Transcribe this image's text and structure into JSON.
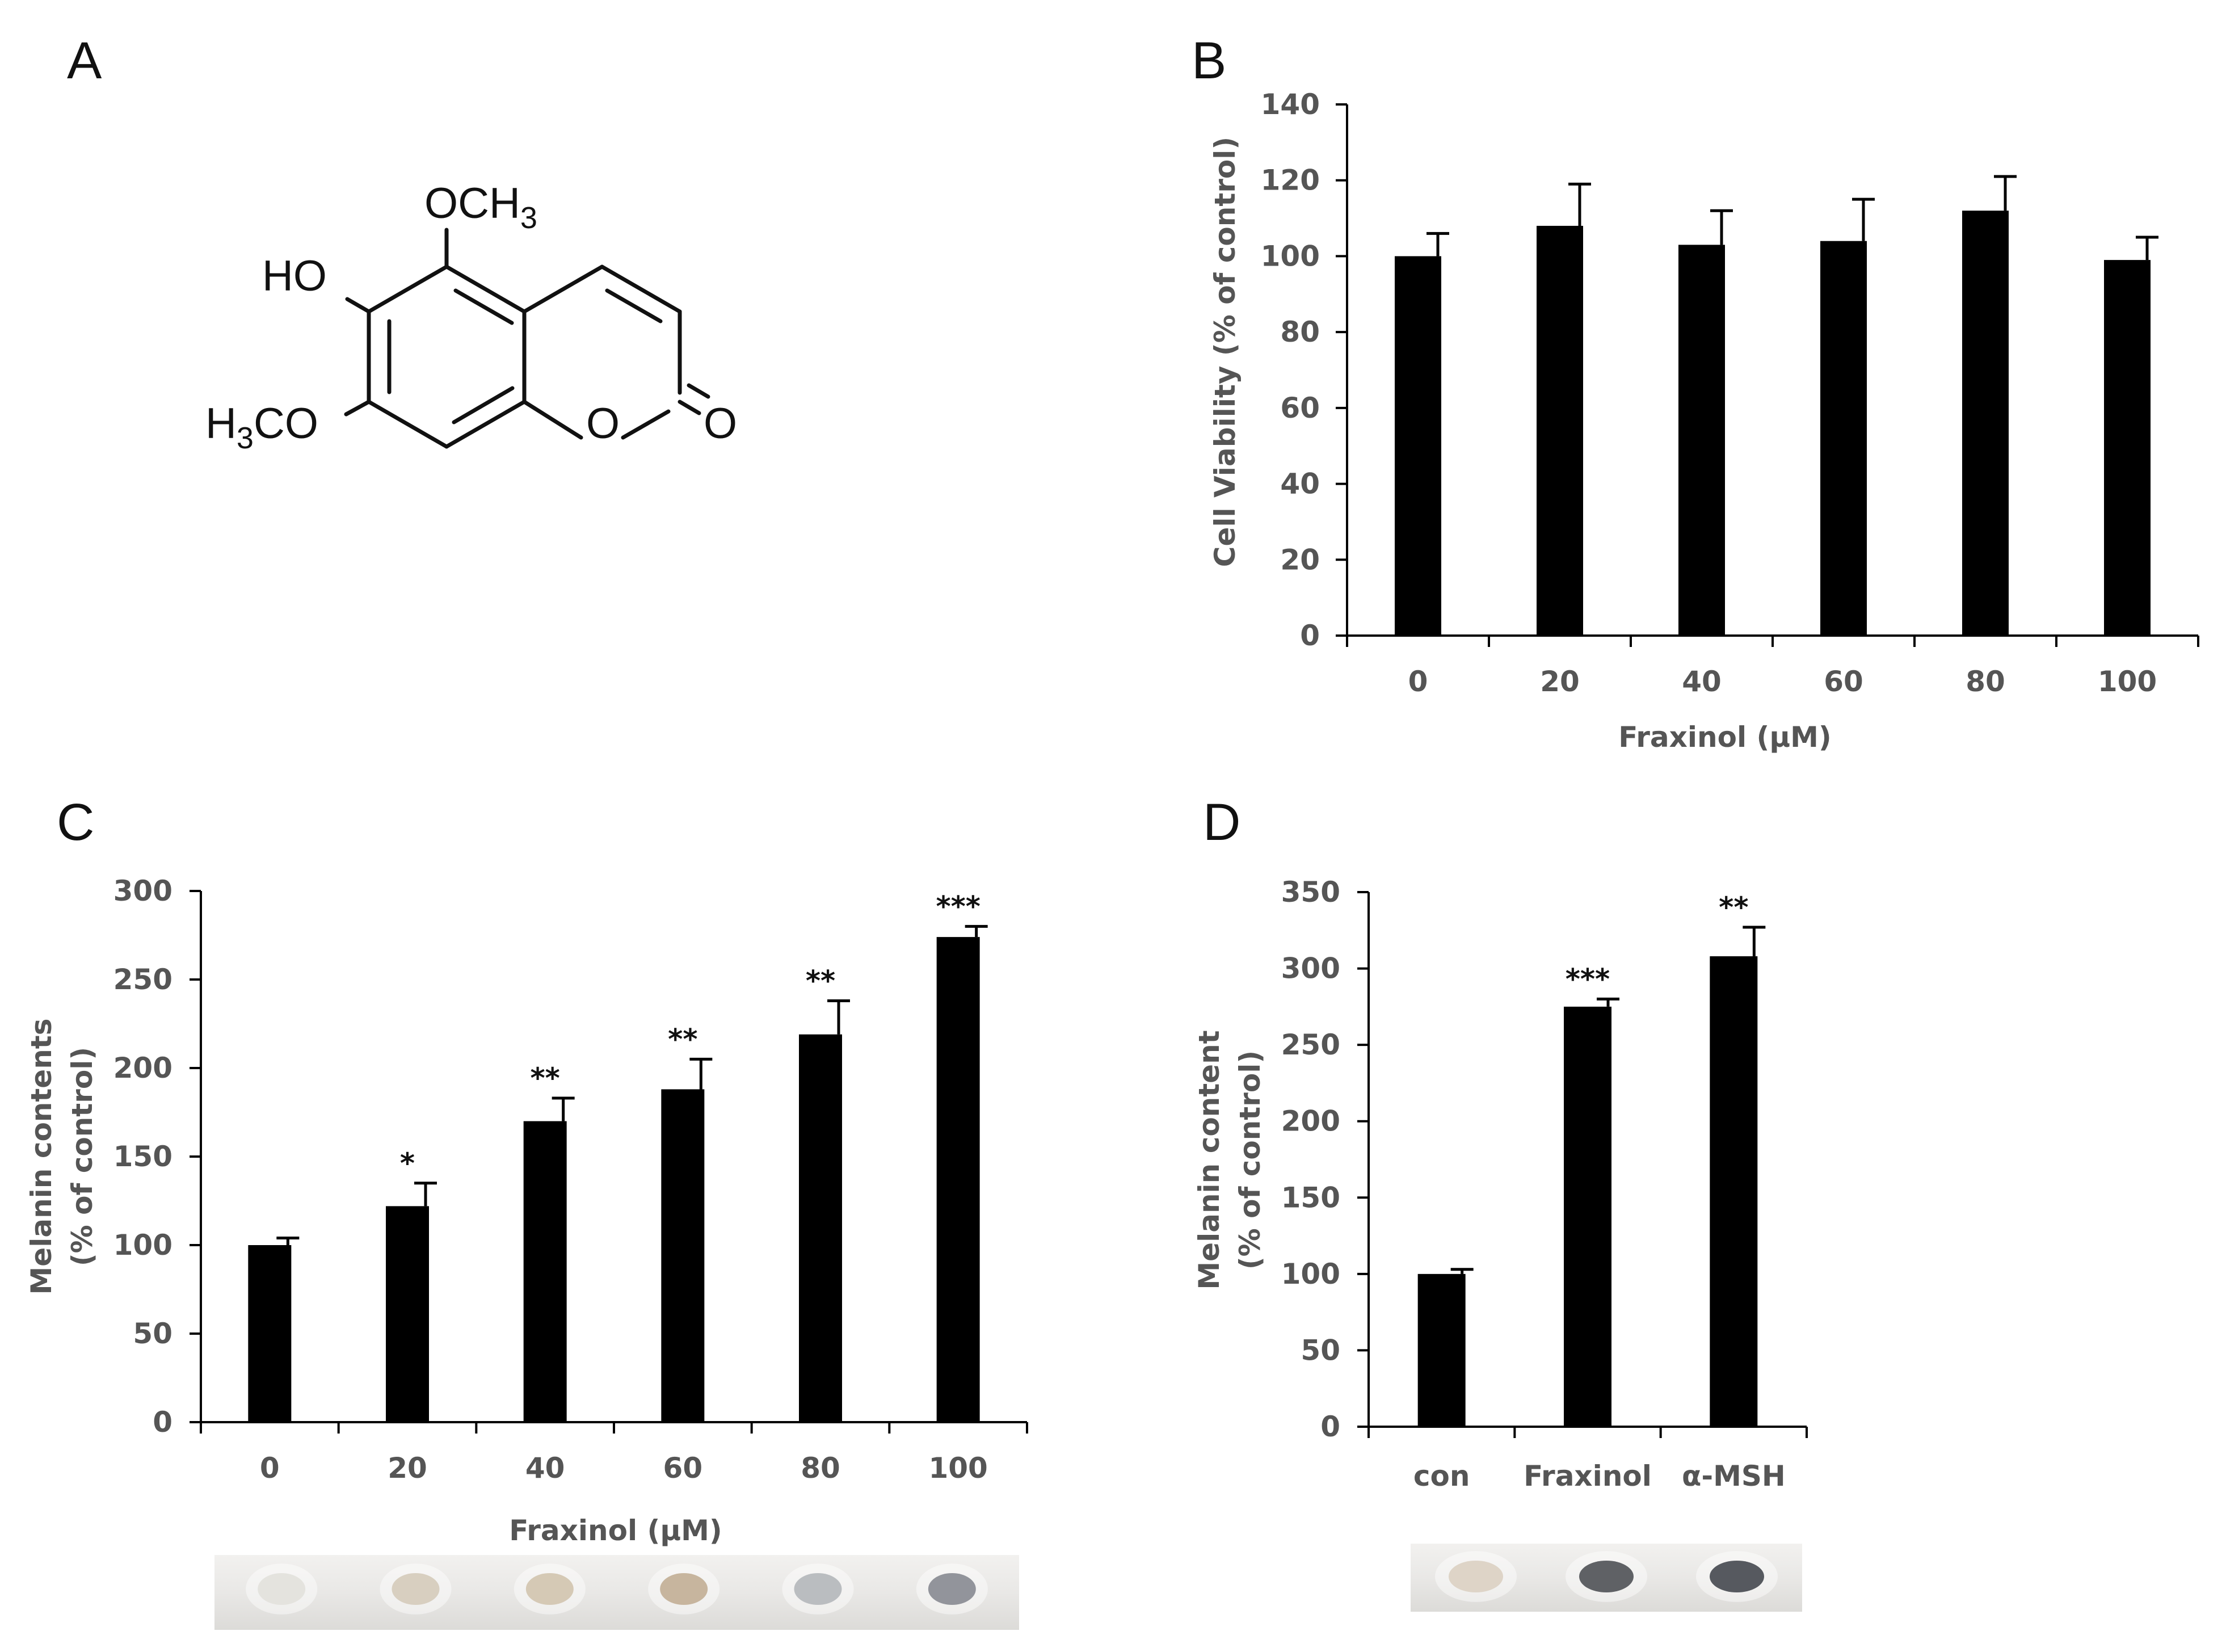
{
  "panels": {
    "a": {
      "letter": "A"
    },
    "b": {
      "letter": "B"
    },
    "c": {
      "letter": "C"
    },
    "d": {
      "letter": "D"
    }
  },
  "structure": {
    "och3_main": "OCH",
    "och3_sub": "3",
    "ho": "HO",
    "h3co_h": "H",
    "h3co_sub": "3",
    "h3co_rest": "CO",
    "ring_o": "O",
    "carbonyl_o": "O"
  },
  "chart_data": [
    {
      "panel": "B",
      "type": "bar",
      "categories": [
        "0",
        "20",
        "40",
        "60",
        "80",
        "100"
      ],
      "values": [
        100,
        108,
        103,
        104,
        112,
        99
      ],
      "errors": [
        6,
        11,
        9,
        11,
        9,
        6
      ],
      "significance": [
        "",
        "",
        "",
        "",
        "",
        ""
      ],
      "xlabel": "Fraxinol (μM)",
      "ylabel": "Cell Viability (% of control)",
      "ylabel_lines": [
        "Cell Viability (% of control)"
      ],
      "ylim": [
        0,
        140
      ],
      "yticks": [
        0,
        20,
        40,
        60,
        80,
        100,
        120,
        140
      ],
      "bar_color": "#000000",
      "grid": false
    },
    {
      "panel": "C",
      "type": "bar",
      "categories": [
        "0",
        "20",
        "40",
        "60",
        "80",
        "100"
      ],
      "values": [
        100,
        122,
        170,
        188,
        219,
        274
      ],
      "errors": [
        4,
        13,
        13,
        17,
        19,
        6
      ],
      "significance": [
        "",
        "*",
        "**",
        "**",
        "**",
        "***"
      ],
      "xlabel": "Fraxinol (μM)",
      "ylabel": "Melanin contents (% of control)",
      "ylabel_lines": [
        "Melanin contents",
        "(% of control)"
      ],
      "ylim": [
        0,
        300
      ],
      "yticks": [
        0,
        50,
        100,
        150,
        200,
        250,
        300
      ],
      "bar_color": "#000000",
      "grid": false
    },
    {
      "panel": "D",
      "type": "bar",
      "categories": [
        "con",
        "Fraxinol",
        "α-MSH"
      ],
      "values": [
        100,
        275,
        308
      ],
      "errors": [
        3,
        5,
        19
      ],
      "significance": [
        "",
        "***",
        "**"
      ],
      "xlabel": "",
      "ylabel": "Melanin content (% of control)",
      "ylabel_lines": [
        "Melanin content",
        "(% of control)"
      ],
      "ylim": [
        0,
        350
      ],
      "yticks": [
        0,
        50,
        100,
        150,
        200,
        250,
        300,
        350
      ],
      "bar_color": "#000000",
      "grid": false
    }
  ],
  "pellet_photos": {
    "c": [
      "#e3e1dc",
      "#d6ccbd",
      "#d3c6b1",
      "#c4b199",
      "#b6b9bd",
      "#8c8e96"
    ],
    "d": [
      "#dcd2c4",
      "#56585d",
      "#4d5056"
    ]
  }
}
